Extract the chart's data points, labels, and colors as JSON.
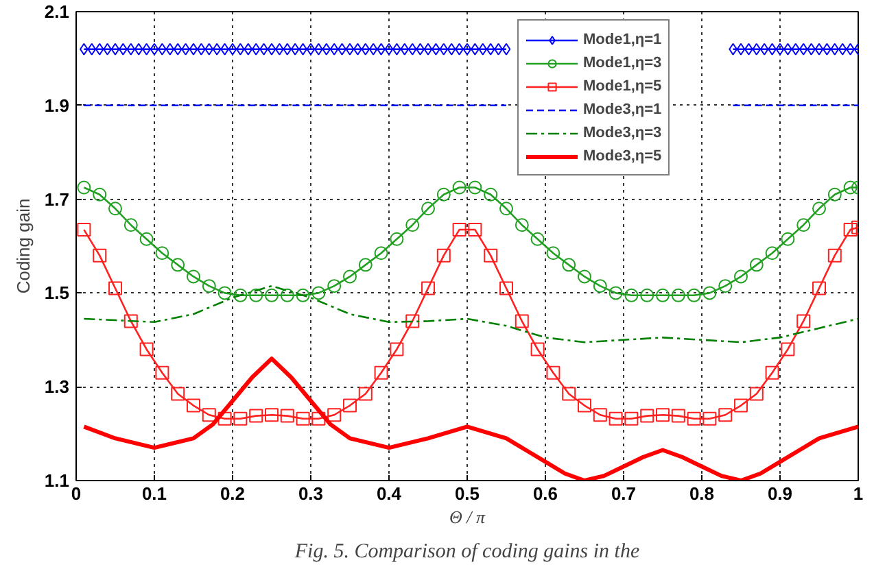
{
  "chart_data": {
    "type": "line",
    "xlabel": "Θ / π",
    "ylabel": "Coding gain",
    "annotations": [
      "Fig. 5. Comparison of coding gains in the"
    ],
    "xlim": [
      0,
      1
    ],
    "ylim": [
      1.1,
      2.1
    ],
    "xticks": [
      0,
      0.1,
      0.2,
      0.3,
      0.4,
      0.5,
      0.6,
      0.7,
      0.8,
      0.9,
      1
    ],
    "yticks": [
      1.1,
      1.3,
      1.5,
      1.7,
      1.9,
      2.1
    ],
    "grid": true,
    "legend": "top right",
    "series": [
      {
        "name": "Mode1,η=1",
        "color": "#0000ff",
        "marker": "diamond",
        "line_style": "solid",
        "x": [
          0.01,
          0.02,
          0.03,
          0.04,
          0.05,
          0.06,
          0.07,
          0.08,
          0.09,
          0.1,
          0.11,
          0.12,
          0.13,
          0.14,
          0.15,
          0.16,
          0.17,
          0.18,
          0.19,
          0.2,
          0.21,
          0.22,
          0.23,
          0.24,
          0.25,
          0.26,
          0.27,
          0.28,
          0.29,
          0.3,
          0.31,
          0.32,
          0.33,
          0.34,
          0.35,
          0.36,
          0.37,
          0.38,
          0.39,
          0.4,
          0.41,
          0.42,
          0.43,
          0.44,
          0.45,
          0.46,
          0.47,
          0.48,
          0.49,
          0.5,
          0.51,
          0.52,
          0.53,
          0.54,
          0.55,
          0.7,
          0.84,
          0.85,
          0.86,
          0.87,
          0.88,
          0.89,
          0.9,
          0.91,
          0.92,
          0.93,
          0.94,
          0.95,
          0.96,
          0.97,
          0.98,
          0.99,
          1.0
        ],
        "values": [
          2.02,
          2.02,
          2.02,
          2.02,
          2.02,
          2.02,
          2.02,
          2.02,
          2.02,
          2.02,
          2.02,
          2.02,
          2.02,
          2.02,
          2.02,
          2.02,
          2.02,
          2.02,
          2.02,
          2.02,
          2.02,
          2.02,
          2.02,
          2.02,
          2.02,
          2.02,
          2.02,
          2.02,
          2.02,
          2.02,
          2.02,
          2.02,
          2.02,
          2.02,
          2.02,
          2.02,
          2.02,
          2.02,
          2.02,
          2.02,
          2.02,
          2.02,
          2.02,
          2.02,
          2.02,
          2.02,
          2.02,
          2.02,
          2.02,
          2.02,
          2.02,
          2.02,
          2.02,
          2.02,
          2.02,
          null,
          2.02,
          2.02,
          2.02,
          2.02,
          2.02,
          2.02,
          2.02,
          2.02,
          2.02,
          2.02,
          2.02,
          2.02,
          2.02,
          2.02,
          2.02,
          2.02,
          2.02
        ]
      },
      {
        "name": "Mode1,η=3",
        "color": "#22a022",
        "marker": "circle",
        "line_style": "solid",
        "x": [
          0.01,
          0.03,
          0.05,
          0.07,
          0.09,
          0.11,
          0.13,
          0.15,
          0.17,
          0.19,
          0.21,
          0.23,
          0.25,
          0.27,
          0.29,
          0.31,
          0.33,
          0.35,
          0.37,
          0.39,
          0.41,
          0.43,
          0.45,
          0.47,
          0.49,
          0.51,
          0.53,
          0.55,
          0.57,
          0.59,
          0.61,
          0.63,
          0.65,
          0.67,
          0.69,
          0.71,
          0.73,
          0.75,
          0.77,
          0.79,
          0.81,
          0.83,
          0.85,
          0.87,
          0.89,
          0.91,
          0.93,
          0.95,
          0.97,
          0.99,
          1.0
        ],
        "values": [
          1.725,
          1.71,
          1.68,
          1.645,
          1.615,
          1.585,
          1.56,
          1.535,
          1.515,
          1.5,
          1.495,
          1.495,
          1.495,
          1.495,
          1.495,
          1.5,
          1.515,
          1.535,
          1.56,
          1.585,
          1.615,
          1.645,
          1.68,
          1.71,
          1.725,
          1.725,
          1.71,
          1.68,
          1.645,
          1.615,
          1.585,
          1.56,
          1.535,
          1.515,
          1.5,
          1.495,
          1.495,
          1.495,
          1.495,
          1.495,
          1.5,
          1.515,
          1.535,
          1.56,
          1.585,
          1.615,
          1.645,
          1.68,
          1.71,
          1.725,
          1.725
        ]
      },
      {
        "name": "Mode1,η=5",
        "color": "#ff2020",
        "marker": "square",
        "line_style": "solid",
        "x": [
          0.01,
          0.03,
          0.05,
          0.07,
          0.09,
          0.11,
          0.13,
          0.15,
          0.17,
          0.19,
          0.21,
          0.23,
          0.25,
          0.27,
          0.29,
          0.31,
          0.33,
          0.35,
          0.37,
          0.39,
          0.41,
          0.43,
          0.45,
          0.47,
          0.49,
          0.51,
          0.53,
          0.55,
          0.57,
          0.59,
          0.61,
          0.63,
          0.65,
          0.67,
          0.69,
          0.71,
          0.73,
          0.75,
          0.77,
          0.79,
          0.81,
          0.83,
          0.85,
          0.87,
          0.89,
          0.91,
          0.93,
          0.95,
          0.97,
          0.99,
          1.0
        ],
        "values": [
          1.635,
          1.58,
          1.51,
          1.44,
          1.38,
          1.33,
          1.285,
          1.26,
          1.24,
          1.232,
          1.232,
          1.238,
          1.24,
          1.238,
          1.232,
          1.232,
          1.24,
          1.26,
          1.285,
          1.33,
          1.38,
          1.44,
          1.51,
          1.58,
          1.635,
          1.635,
          1.58,
          1.51,
          1.44,
          1.38,
          1.33,
          1.285,
          1.26,
          1.24,
          1.232,
          1.232,
          1.238,
          1.24,
          1.238,
          1.232,
          1.232,
          1.24,
          1.26,
          1.285,
          1.33,
          1.38,
          1.44,
          1.51,
          1.58,
          1.635,
          1.64
        ]
      },
      {
        "name": "Mode3,η=1",
        "color": "#0000ff",
        "marker": "none",
        "line_style": "dashed",
        "x": [
          0.01,
          0.55,
          0.7,
          0.84,
          1.0
        ],
        "values": [
          1.9,
          1.9,
          null,
          1.9,
          1.9
        ]
      },
      {
        "name": "Mode3,η=3",
        "color": "#008000",
        "marker": "none",
        "line_style": "dashdot",
        "x": [
          0.01,
          0.05,
          0.1,
          0.15,
          0.2,
          0.25,
          0.3,
          0.35,
          0.4,
          0.45,
          0.5,
          0.55,
          0.6,
          0.65,
          0.7,
          0.75,
          0.8,
          0.85,
          0.9,
          0.95,
          1.0
        ],
        "values": [
          1.445,
          1.442,
          1.438,
          1.455,
          1.49,
          1.515,
          1.49,
          1.455,
          1.438,
          1.44,
          1.445,
          1.43,
          1.405,
          1.395,
          1.4,
          1.405,
          1.4,
          1.395,
          1.405,
          1.425,
          1.445
        ]
      },
      {
        "name": "Mode3,η=5",
        "color": "#ff0000",
        "marker": "none",
        "line_style": "solid",
        "x": [
          0.01,
          0.05,
          0.1,
          0.15,
          0.175,
          0.2,
          0.225,
          0.25,
          0.275,
          0.3,
          0.325,
          0.35,
          0.4,
          0.45,
          0.5,
          0.55,
          0.575,
          0.6,
          0.625,
          0.65,
          0.675,
          0.7,
          0.725,
          0.75,
          0.775,
          0.8,
          0.825,
          0.85,
          0.875,
          0.9,
          0.925,
          0.95,
          1.0
        ],
        "values": [
          1.215,
          1.19,
          1.17,
          1.19,
          1.22,
          1.27,
          1.32,
          1.36,
          1.32,
          1.27,
          1.22,
          1.19,
          1.17,
          1.19,
          1.215,
          1.19,
          1.165,
          1.14,
          1.115,
          1.1,
          1.11,
          1.13,
          1.15,
          1.165,
          1.15,
          1.13,
          1.11,
          1.1,
          1.115,
          1.14,
          1.165,
          1.19,
          1.215
        ]
      }
    ]
  }
}
